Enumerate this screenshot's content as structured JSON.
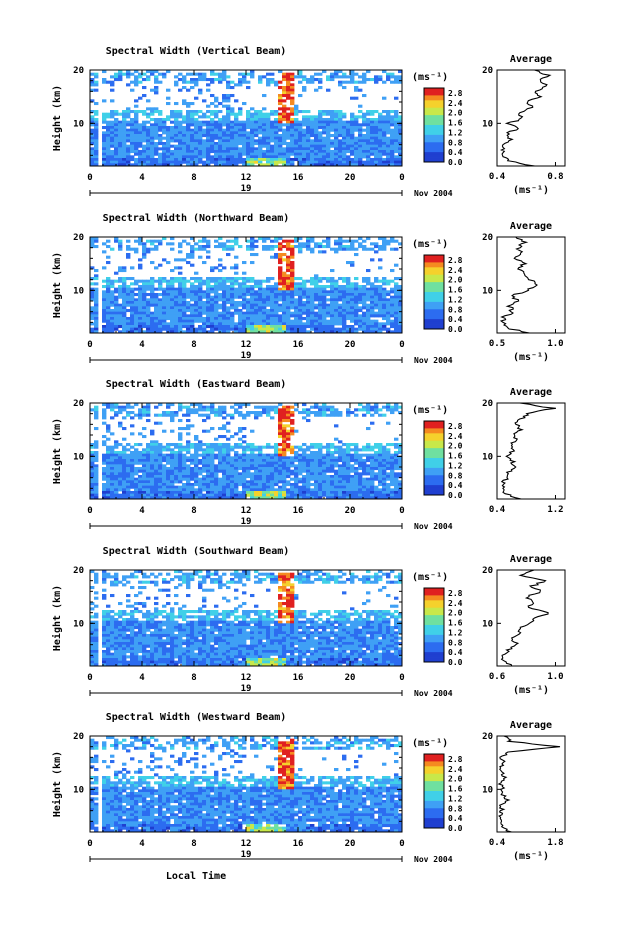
{
  "figure": {
    "xlabel": "Local Time",
    "colorbar_ticks": [
      "2.8",
      "2.4",
      "2.0",
      "1.6",
      "1.2",
      "0.8",
      "0.4",
      "0.0"
    ],
    "colorbar_unit": "(ms⁻¹)",
    "avg_title": "Average",
    "avg_unit": "(ms⁻¹)",
    "date_label": "Nov 2004",
    "day_label": "19"
  },
  "chart_data": [
    {
      "type": "heatmap",
      "title": "Spectral Width (Vertical Beam)",
      "ylabel": "Height (km)",
      "xlabel": "",
      "x_ticks": [
        "0",
        "4",
        "8",
        "12",
        "16",
        "20",
        "0"
      ],
      "xlim": [
        0,
        24
      ],
      "y_ticks": [
        "20",
        "10"
      ],
      "ylim": [
        2,
        20
      ],
      "colorbar": {
        "range": [
          0.0,
          3.0
        ],
        "ticks": [
          2.8,
          2.4,
          2.0,
          1.6,
          1.2,
          0.8,
          0.4,
          0.0
        ]
      },
      "day": "19",
      "date": "Nov 2004",
      "average": {
        "title": "Average",
        "xlabel": "(ms⁻¹)",
        "x_ticks": [
          "0.4",
          "0.8"
        ],
        "xlim": [
          0.4,
          0.8
        ],
        "y_ticks": [
          "20",
          "10"
        ],
        "profile": [
          [
            0.62,
            2
          ],
          [
            0.46,
            3
          ],
          [
            0.44,
            4
          ],
          [
            0.43,
            5
          ],
          [
            0.45,
            6
          ],
          [
            0.48,
            7
          ],
          [
            0.46,
            8
          ],
          [
            0.52,
            9
          ],
          [
            0.47,
            10
          ],
          [
            0.55,
            11
          ],
          [
            0.53,
            12
          ],
          [
            0.6,
            13
          ],
          [
            0.58,
            14
          ],
          [
            0.66,
            15
          ],
          [
            0.62,
            16
          ],
          [
            0.7,
            17
          ],
          [
            0.65,
            18
          ],
          [
            0.7,
            19
          ],
          [
            0.62,
            20
          ]
        ]
      }
    },
    {
      "type": "heatmap",
      "title": "Spectral Width (Northward Beam)",
      "ylabel": "Height (km)",
      "xlabel": "",
      "x_ticks": [
        "0",
        "4",
        "8",
        "12",
        "16",
        "20",
        "0"
      ],
      "xlim": [
        0,
        24
      ],
      "y_ticks": [
        "20",
        "10"
      ],
      "ylim": [
        2,
        20
      ],
      "colorbar": {
        "range": [
          0.0,
          3.0
        ],
        "ticks": [
          2.8,
          2.4,
          2.0,
          1.6,
          1.2,
          0.8,
          0.4,
          0.0
        ]
      },
      "day": "19",
      "date": "Nov 2004",
      "average": {
        "title": "Average",
        "xlabel": "(ms⁻¹)",
        "x_ticks": [
          "0.5",
          "1.0"
        ],
        "xlim": [
          0.4,
          1.05
        ],
        "y_ticks": [
          "20",
          "10"
        ],
        "profile": [
          [
            0.7,
            2
          ],
          [
            0.48,
            3
          ],
          [
            0.46,
            4
          ],
          [
            0.47,
            5
          ],
          [
            0.55,
            6
          ],
          [
            0.52,
            7
          ],
          [
            0.6,
            8
          ],
          [
            0.55,
            9
          ],
          [
            0.7,
            10
          ],
          [
            0.78,
            11
          ],
          [
            0.72,
            12
          ],
          [
            0.68,
            13
          ],
          [
            0.62,
            14
          ],
          [
            0.66,
            15
          ],
          [
            0.58,
            16
          ],
          [
            0.64,
            17
          ],
          [
            0.6,
            18
          ],
          [
            0.66,
            19
          ],
          [
            0.58,
            20
          ]
        ]
      }
    },
    {
      "type": "heatmap",
      "title": "Spectral Width (Eastward Beam)",
      "ylabel": "Height (km)",
      "xlabel": "",
      "x_ticks": [
        "0",
        "4",
        "8",
        "12",
        "16",
        "20",
        "0"
      ],
      "xlim": [
        0,
        24
      ],
      "y_ticks": [
        "20",
        "10"
      ],
      "ylim": [
        2,
        20
      ],
      "colorbar": {
        "range": [
          0.0,
          3.0
        ],
        "ticks": [
          2.8,
          2.4,
          2.0,
          1.6,
          1.2,
          0.8,
          0.4,
          0.0
        ]
      },
      "day": "19",
      "date": "Nov 2004",
      "average": {
        "title": "Average",
        "xlabel": "",
        "x_ticks": [
          "0.4",
          "1.2"
        ],
        "xlim": [
          0.4,
          1.3
        ],
        "y_ticks": [
          "20",
          "10"
        ],
        "profile": [
          [
            0.7,
            2
          ],
          [
            0.5,
            3
          ],
          [
            0.46,
            4
          ],
          [
            0.48,
            5
          ],
          [
            0.52,
            6
          ],
          [
            0.56,
            7
          ],
          [
            0.66,
            8
          ],
          [
            0.6,
            9
          ],
          [
            0.55,
            10
          ],
          [
            0.6,
            11
          ],
          [
            0.58,
            12
          ],
          [
            0.64,
            13
          ],
          [
            0.62,
            14
          ],
          [
            0.7,
            15
          ],
          [
            0.66,
            16
          ],
          [
            0.72,
            17
          ],
          [
            0.8,
            18
          ],
          [
            1.15,
            19
          ],
          [
            0.7,
            20
          ]
        ]
      }
    },
    {
      "type": "heatmap",
      "title": "Spectral Width (Southward Beam)",
      "ylabel": "Height (km)",
      "xlabel": "",
      "x_ticks": [
        "0",
        "4",
        "8",
        "12",
        "16",
        "20",
        "0"
      ],
      "xlim": [
        0,
        24
      ],
      "y_ticks": [
        "20",
        "10"
      ],
      "ylim": [
        2,
        20
      ],
      "colorbar": {
        "range": [
          0.0,
          3.0
        ],
        "ticks": [
          2.8,
          2.4,
          2.0,
          1.6,
          1.2,
          0.8,
          0.4,
          0.0
        ]
      },
      "day": "19",
      "date": "Nov 2004",
      "average": {
        "title": "Average",
        "xlabel": "(ms⁻¹)",
        "x_ticks": [
          "0.6",
          "1.0"
        ],
        "xlim": [
          0.5,
          1.05
        ],
        "y_ticks": [
          "20",
          "10"
        ],
        "profile": [
          [
            0.62,
            2
          ],
          [
            0.56,
            3
          ],
          [
            0.55,
            4
          ],
          [
            0.6,
            5
          ],
          [
            0.66,
            6
          ],
          [
            0.62,
            7
          ],
          [
            0.7,
            8
          ],
          [
            0.68,
            9
          ],
          [
            0.78,
            10
          ],
          [
            0.82,
            11
          ],
          [
            0.92,
            12
          ],
          [
            0.76,
            13
          ],
          [
            0.8,
            14
          ],
          [
            0.74,
            15
          ],
          [
            0.86,
            16
          ],
          [
            0.78,
            17
          ],
          [
            0.9,
            18
          ],
          [
            0.7,
            19
          ],
          [
            0.8,
            20
          ]
        ]
      }
    },
    {
      "type": "heatmap",
      "title": "Spectral Width (Westward Beam)",
      "ylabel": "Height (km)",
      "xlabel": "Local Time",
      "x_ticks": [
        "0",
        "4",
        "8",
        "12",
        "16",
        "20",
        "0"
      ],
      "xlim": [
        0,
        24
      ],
      "y_ticks": [
        "20",
        "10"
      ],
      "ylim": [
        2,
        20
      ],
      "colorbar": {
        "range": [
          0.0,
          3.0
        ],
        "ticks": [
          2.8,
          2.4,
          2.0,
          1.6,
          1.2,
          0.8,
          0.4,
          0.0
        ]
      },
      "day": "19",
      "date": "Nov 2004",
      "average": {
        "title": "Average",
        "xlabel": "(ms⁻¹)",
        "x_ticks": [
          "0.4",
          "1.8"
        ],
        "xlim": [
          0.4,
          1.9
        ],
        "y_ticks": [
          "20",
          "10"
        ],
        "profile": [
          [
            0.7,
            2
          ],
          [
            0.5,
            3
          ],
          [
            0.46,
            4
          ],
          [
            0.45,
            5
          ],
          [
            0.52,
            6
          ],
          [
            0.5,
            7
          ],
          [
            0.6,
            8
          ],
          [
            0.55,
            9
          ],
          [
            0.52,
            10
          ],
          [
            0.5,
            11
          ],
          [
            0.55,
            12
          ],
          [
            0.52,
            13
          ],
          [
            0.5,
            14
          ],
          [
            0.55,
            15
          ],
          [
            0.52,
            16
          ],
          [
            0.6,
            17
          ],
          [
            1.75,
            18
          ],
          [
            0.7,
            19
          ],
          [
            0.55,
            20
          ]
        ]
      }
    }
  ]
}
